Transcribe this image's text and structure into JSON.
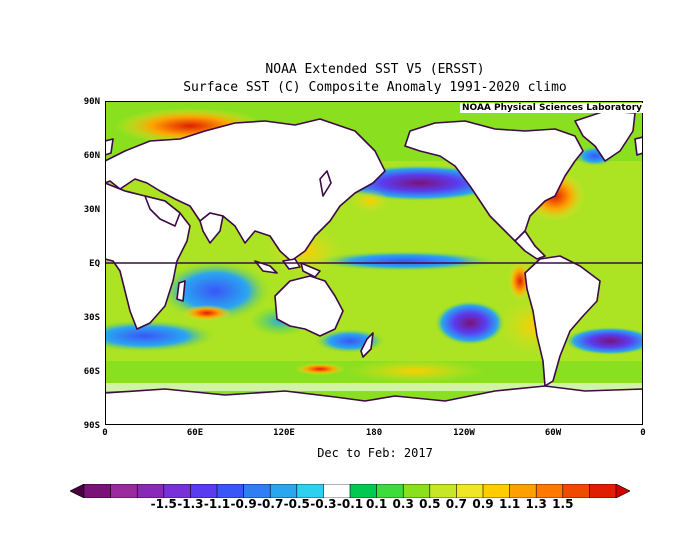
{
  "title": "NOAA Extended SST V5 (ERSST)",
  "subtitle_line": "Surface SST (C) Composite Anomaly 1991-2020 climo",
  "credit": "NOAA Physical Sciences Laboratory",
  "period": "Dec to Feb: 2017",
  "lat_labels": [
    "90N",
    "60N",
    "30N",
    "EQ",
    "30S",
    "60S",
    "90S"
  ],
  "lon_labels": [
    "0",
    "60E",
    "120E",
    "180",
    "120W",
    "60W",
    "0"
  ],
  "colorbar": {
    "labels": [
      "-1.5",
      "-1.3",
      "-1.1",
      "-0.9",
      "-0.7",
      "-0.5",
      "-0.3",
      "-0.1",
      "0.1",
      "0.3",
      "0.5",
      "0.7",
      "0.9",
      "1.1",
      "1.3",
      "1.5"
    ],
    "colors": [
      "#4a0040",
      "#7a1378",
      "#9a2a9e",
      "#8a28b8",
      "#7830d8",
      "#5a3cf0",
      "#3a56f8",
      "#2f7ef4",
      "#2aa6f0",
      "#2ed0f0",
      "#ffffff",
      "#00c850",
      "#3cdc3c",
      "#8ae01e",
      "#c8e628",
      "#f0e628",
      "#ffcc00",
      "#ffa000",
      "#ff7800",
      "#f04a00",
      "#e01e00",
      "#d00000"
    ]
  },
  "colors": {
    "land": "#ffffff",
    "coast": "#3c0a46",
    "equator": "#3c0a46"
  }
}
